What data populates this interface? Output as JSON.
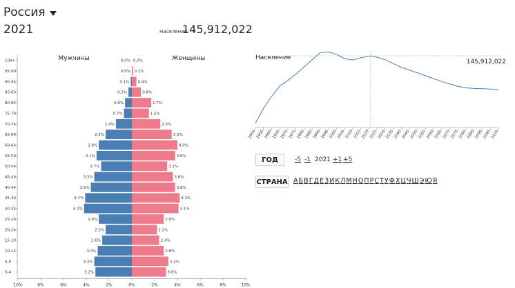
{
  "header": {
    "country": "Россия",
    "year": "2021",
    "population_label": "Население:",
    "population_value": "145,912,022"
  },
  "chart_data": [
    {
      "type": "bar",
      "subtype": "population-pyramid",
      "left_title": "Мужчины",
      "right_title": "Женщины",
      "categories": [
        "100+",
        "95-99",
        "90-94",
        "85-89",
        "80-84",
        "75-79",
        "70-74",
        "65-69",
        "60-64",
        "55-59",
        "50-54",
        "45-49",
        "40-44",
        "35-39",
        "30-34",
        "25-29",
        "20-24",
        "15-19",
        "10-14",
        "5-9",
        "0-4"
      ],
      "series": [
        {
          "name": "Мужчины",
          "values": [
            0.0,
            0.0,
            0.1,
            0.3,
            0.6,
            0.7,
            1.4,
            2.3,
            2.9,
            3.1,
            2.7,
            3.3,
            3.6,
            4.1,
            4.2,
            2.9,
            2.3,
            2.6,
            3.0,
            3.3,
            3.2
          ],
          "labels": [
            "0.0%",
            "0.0%",
            "0.1%",
            "0.3%",
            "0.6%",
            "0.7%",
            "1.4%",
            "2.3%",
            "2.9%",
            "3.1%",
            "2.7%",
            "3.3%",
            "3.6%",
            "4.1%",
            "4.2%",
            "2.9%",
            "2.3%",
            "2.6%",
            "3.0%",
            "3.3%",
            "3.2%"
          ]
        },
        {
          "name": "Женщины",
          "values": [
            0.0,
            0.1,
            0.4,
            0.8,
            1.7,
            1.5,
            2.5,
            3.5,
            4.0,
            3.8,
            3.1,
            3.6,
            3.8,
            4.2,
            4.1,
            2.8,
            2.2,
            2.4,
            2.8,
            3.2,
            3.0
          ],
          "labels": [
            "0.0%",
            "0.1%",
            "0.4%",
            "0.8%",
            "1.7%",
            "1.5%",
            "2.5%",
            "3.5%",
            "4.0%",
            "3.8%",
            "3.1%",
            "3.6%",
            "3.8%",
            "4.2%",
            "4.1%",
            "2.8%",
            "2.2%",
            "2.4%",
            "2.8%",
            "3.2%",
            "3.0%"
          ]
        }
      ],
      "xlim": [
        -10,
        10
      ],
      "xticks": [
        "10%",
        "8%",
        "6%",
        "4%",
        "2%",
        "0%",
        "2%",
        "4%",
        "6%",
        "8%",
        "10%"
      ],
      "colors": {
        "male": "#4a7fb5",
        "female": "#ee7b8b"
      }
    },
    {
      "type": "line",
      "ylabel": "Население",
      "value_label": "145,912,022",
      "x": [
        1950,
        1955,
        1960,
        1965,
        1970,
        1975,
        1980,
        1985,
        1990,
        1995,
        2000,
        2005,
        2010,
        2015,
        2020,
        2021,
        2025,
        2030,
        2035,
        2040,
        2045,
        2050,
        2055,
        2060,
        2065,
        2070,
        2075,
        2080,
        2085,
        2090,
        2095,
        2100
      ],
      "y": [
        102.8,
        112.3,
        119.9,
        126.5,
        130.1,
        134.2,
        138.7,
        143.4,
        148.0,
        148.4,
        146.9,
        144.1,
        143.2,
        144.6,
        145.6,
        145.9,
        145.0,
        143.4,
        141.0,
        138.6,
        136.8,
        135.0,
        133.1,
        131.3,
        129.5,
        127.8,
        126.3,
        125.4,
        125.0,
        124.8,
        124.6,
        124.2
      ],
      "marker_x": 2021,
      "xticks": [
        "1950",
        "1955",
        "1960",
        "1965",
        "1970",
        "1975",
        "1980",
        "1985",
        "1990",
        "1995",
        "2000",
        "2005",
        "2010",
        "2015",
        "2020",
        "2025",
        "2030",
        "2035",
        "2040",
        "2045",
        "2050",
        "2055",
        "2060",
        "2065",
        "2070",
        "2075",
        "2080",
        "2085",
        "2090",
        "2095",
        "2100"
      ],
      "color": "#4a7fb5"
    }
  ],
  "controls": {
    "year_button": "ГОД",
    "minus5": "-5",
    "minus1": "-1",
    "current_year": "2021",
    "plus1": "+1",
    "plus5": "+5",
    "country_button": "СТРАНА",
    "letters": [
      "А",
      "Б",
      "В",
      "Г",
      "Д",
      "Е",
      "З",
      "И",
      "К",
      "Л",
      "М",
      "Н",
      "О",
      "П",
      "Р",
      "С",
      "Т",
      "У",
      "Ф",
      "Х",
      "Ц",
      "Ч",
      "Ш",
      "Э",
      "Ю",
      "Я"
    ]
  }
}
